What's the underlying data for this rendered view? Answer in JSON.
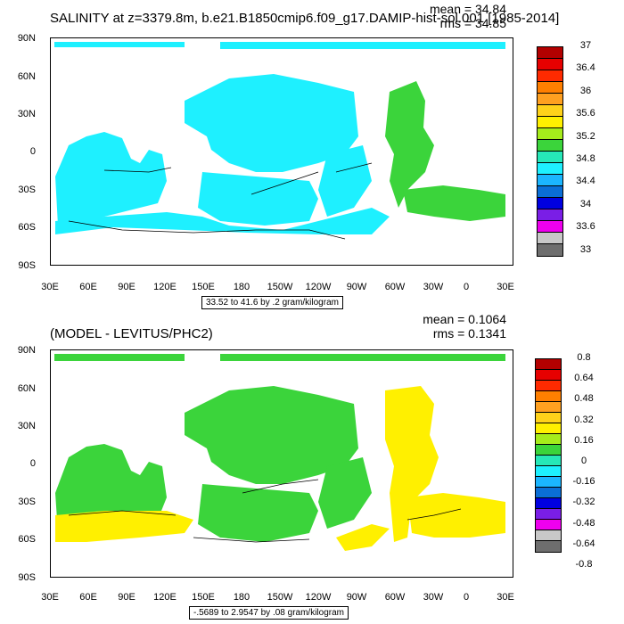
{
  "panels": [
    {
      "title": "SALINITY at z=3379.8m, b.e21.B1850cmip6.f09_g17.DAMIP-hist-sol.001 [1985-2014]",
      "mean": "mean = 34.84",
      "rms": "rms = 34.85",
      "info": "33.52 to 41.6 by .2 gram/kilogram",
      "y_labels": [
        "90N",
        "60N",
        "30N",
        "0",
        "30S",
        "60S",
        "90S"
      ],
      "x_labels": [
        "30E",
        "60E",
        "90E",
        "120E",
        "150E",
        "180",
        "150W",
        "120W",
        "90W",
        "60W",
        "30W",
        "0",
        "30E"
      ],
      "colorbar": {
        "colors": [
          "#b30000",
          "#e60000",
          "#ff2a00",
          "#ff7f00",
          "#ffa020",
          "#ffd21a",
          "#fff000",
          "#a6ec1b",
          "#3bd43b",
          "#26e8b8",
          "#1ef0ff",
          "#1bb5ff",
          "#0a6ed6",
          "#0000e0",
          "#7a1ee6",
          "#ee00ee",
          "#c8c8c8",
          "#6e6e6e"
        ],
        "labels": [
          "37",
          "36.4",
          "36",
          "35.6",
          "35.2",
          "34.8",
          "34.4",
          "34",
          "33.6",
          "33"
        ]
      },
      "fill_color": "#1ef0ff",
      "accent_color": "#3bd43b"
    },
    {
      "title": "(MODEL - LEVITUS/PHC2)",
      "mean": "mean = 0.1064",
      "rms": "rms = 0.1341",
      "info": "-.5689 to 2.9547 by .08 gram/kilogram",
      "y_labels": [
        "90N",
        "60N",
        "30N",
        "0",
        "30S",
        "60S",
        "90S"
      ],
      "x_labels": [
        "30E",
        "60E",
        "90E",
        "120E",
        "150E",
        "180",
        "150W",
        "120W",
        "90W",
        "60W",
        "30W",
        "0",
        "30E"
      ],
      "colorbar": {
        "colors": [
          "#b30000",
          "#e60000",
          "#ff2a00",
          "#ff7f00",
          "#ffa020",
          "#ffd21a",
          "#fff000",
          "#a6ec1b",
          "#3bd43b",
          "#26e8b8",
          "#1ef0ff",
          "#1bb5ff",
          "#0a6ed6",
          "#0000e0",
          "#7a1ee6",
          "#ee00ee",
          "#c8c8c8",
          "#6e6e6e"
        ],
        "labels": [
          "0.8",
          "0.64",
          "0.48",
          "0.32",
          "0.16",
          "0",
          "-0.16",
          "-0.32",
          "-0.48",
          "-0.64",
          "-0.8"
        ]
      },
      "fill_color": "#3bd43b",
      "accent_color": "#fff000"
    }
  ]
}
